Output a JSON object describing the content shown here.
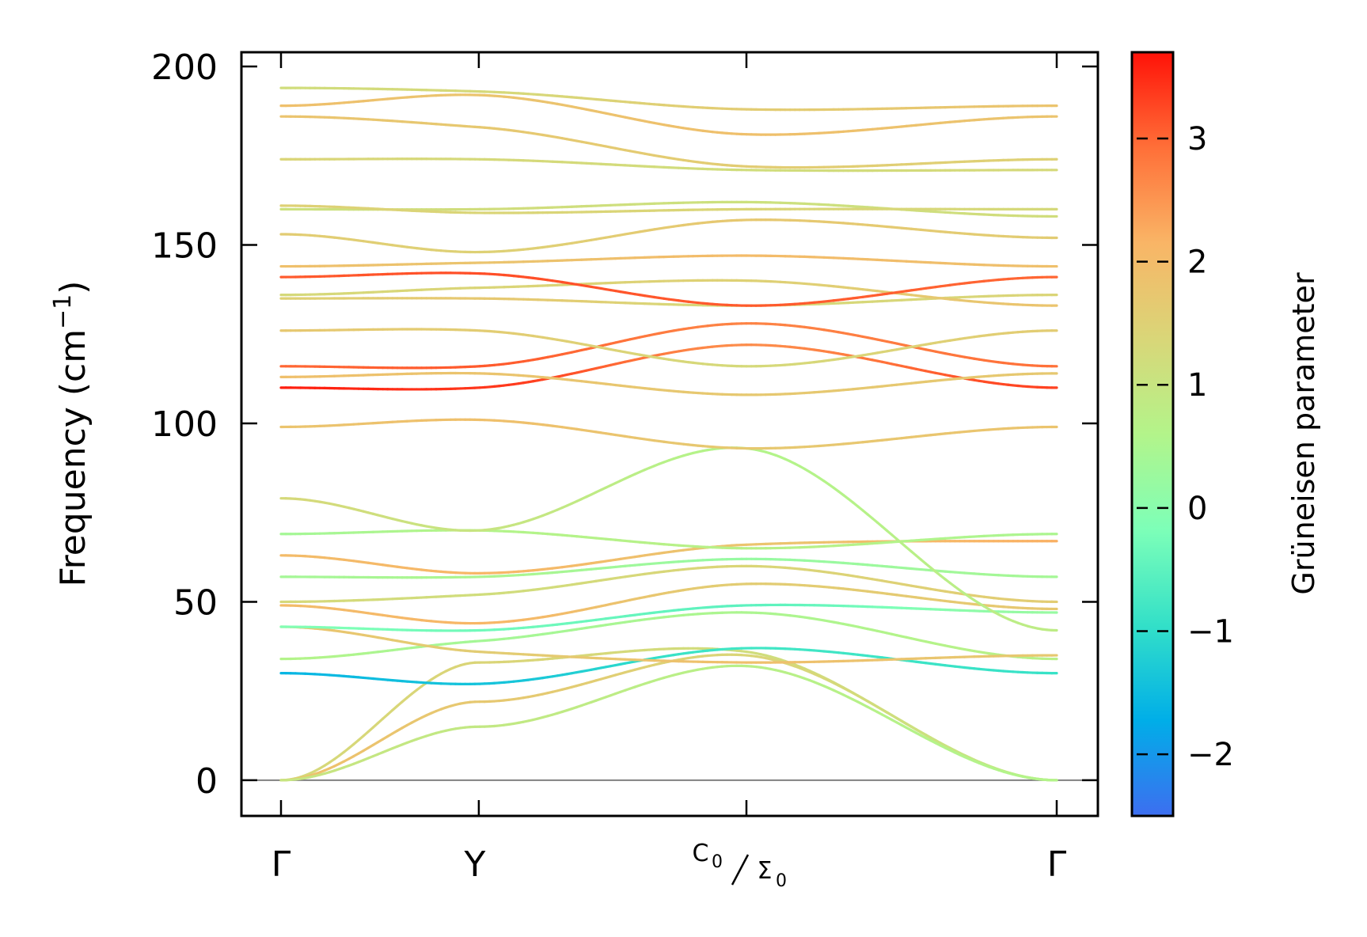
{
  "chart_data": {
    "type": "line",
    "title": "",
    "xlabel": "",
    "ylabel": "Frequency (cm",
    "ylabel_superscript": "−1",
    "ylabel_suffix": ")",
    "ylim": [
      -10,
      204
    ],
    "yticks": [
      0,
      50,
      100,
      150,
      200
    ],
    "ytick_labels": [
      "0",
      "50",
      "100",
      "150",
      "200"
    ],
    "path_points": [
      0.0,
      0.255,
      0.6,
      1.0
    ],
    "path_labels": [
      {
        "main": "Γ"
      },
      {
        "main": "Y"
      },
      {
        "main": "C",
        "sub": "0",
        "slash_main": "Σ",
        "slash_sub": "0"
      },
      {
        "main": "Γ"
      }
    ],
    "colorbar": {
      "label": "Grüneisen parameter",
      "range": [
        -2.5,
        3.7
      ],
      "ticks": [
        -2,
        -1,
        0,
        1,
        2,
        3
      ],
      "tick_labels": [
        "−2",
        "−1",
        "0",
        "1",
        "2",
        "3"
      ],
      "colormap": [
        "#3d6ef0",
        "#00aee8",
        "#33e0c8",
        "#7dffb8",
        "#b3f48a",
        "#d9d678",
        "#f9b566",
        "#ff6f38",
        "#ff1208"
      ]
    },
    "zero_line_color": "#808080",
    "series": [
      {
        "name": "band-1",
        "x": [
          0,
          0.255,
          0.6,
          1.0
        ],
        "y": [
          0,
          33,
          36,
          0
        ],
        "g": [
          1.3,
          1.4,
          1.2,
          1.0
        ]
      },
      {
        "name": "band-2",
        "x": [
          0,
          0.255,
          0.6,
          1.0
        ],
        "y": [
          0,
          22,
          35,
          0
        ],
        "g": [
          1.9,
          1.7,
          1.4,
          0.9
        ]
      },
      {
        "name": "band-3",
        "x": [
          0,
          0.255,
          0.6,
          1.0
        ],
        "y": [
          0,
          15,
          32,
          0
        ],
        "g": [
          1.0,
          0.9,
          0.7,
          0.6
        ]
      },
      {
        "name": "band-4",
        "x": [
          0,
          0.255,
          0.6,
          1.0
        ],
        "y": [
          30,
          27,
          37,
          30
        ],
        "g": [
          -1.6,
          -1.4,
          -0.8,
          -0.9
        ]
      },
      {
        "name": "band-5",
        "x": [
          0,
          0.255,
          0.6,
          1.0
        ],
        "y": [
          34,
          39,
          47,
          34
        ],
        "g": [
          0.6,
          0.4,
          0.5,
          0.7
        ]
      },
      {
        "name": "band-6",
        "x": [
          0,
          0.255,
          0.6,
          1.0
        ],
        "y": [
          43,
          36,
          33,
          35
        ],
        "g": [
          1.8,
          1.6,
          1.9,
          1.7
        ]
      },
      {
        "name": "band-7",
        "x": [
          0,
          0.255,
          0.6,
          1.0
        ],
        "y": [
          43,
          42,
          49,
          47
        ],
        "g": [
          -0.1,
          -0.3,
          -0.5,
          0.2
        ]
      },
      {
        "name": "band-8",
        "x": [
          0,
          0.255,
          0.6,
          1.0
        ],
        "y": [
          49,
          44,
          55,
          48
        ],
        "g": [
          2.0,
          2.1,
          1.6,
          1.7
        ]
      },
      {
        "name": "band-9",
        "x": [
          0,
          0.255,
          0.6,
          1.0
        ],
        "y": [
          50,
          52,
          60,
          50
        ],
        "g": [
          1.3,
          1.2,
          1.4,
          1.6
        ]
      },
      {
        "name": "band-10",
        "x": [
          0,
          0.255,
          0.6,
          1.0
        ],
        "y": [
          57,
          57,
          62,
          57
        ],
        "g": [
          0.4,
          0.5,
          0.2,
          0.4
        ]
      },
      {
        "name": "band-11",
        "x": [
          0,
          0.255,
          0.6,
          1.0
        ],
        "y": [
          63,
          58,
          66,
          67
        ],
        "g": [
          2.0,
          2.1,
          1.8,
          2.2
        ]
      },
      {
        "name": "band-12",
        "x": [
          0,
          0.255,
          0.6,
          1.0
        ],
        "y": [
          69,
          70,
          65,
          69
        ],
        "g": [
          0.4,
          0.6,
          0.7,
          0.5
        ]
      },
      {
        "name": "band-13",
        "x": [
          0,
          0.255,
          0.6,
          1.0
        ],
        "y": [
          79,
          70,
          93,
          42
        ],
        "g": [
          1.3,
          1.0,
          0.6,
          0.8
        ]
      },
      {
        "name": "band-14",
        "x": [
          0,
          0.255,
          0.6,
          1.0
        ],
        "y": [
          99,
          101,
          93,
          99
        ],
        "g": [
          1.8,
          1.9,
          1.7,
          1.8
        ]
      },
      {
        "name": "band-15",
        "x": [
          0,
          0.255,
          0.6,
          1.0
        ],
        "y": [
          110,
          110,
          122,
          110
        ],
        "g": [
          3.6,
          3.4,
          2.6,
          3.3
        ]
      },
      {
        "name": "band-16",
        "x": [
          0,
          0.255,
          0.6,
          1.0
        ],
        "y": [
          113,
          114,
          108,
          114
        ],
        "g": [
          1.9,
          1.8,
          1.7,
          1.7
        ]
      },
      {
        "name": "band-17",
        "x": [
          0,
          0.255,
          0.6,
          1.0
        ],
        "y": [
          116,
          116,
          128,
          116
        ],
        "g": [
          3.0,
          3.1,
          2.7,
          2.9
        ]
      },
      {
        "name": "band-18",
        "x": [
          0,
          0.255,
          0.6,
          1.0
        ],
        "y": [
          126,
          126,
          116,
          126
        ],
        "g": [
          1.7,
          1.6,
          1.3,
          1.6
        ]
      },
      {
        "name": "band-19",
        "x": [
          0,
          0.255,
          0.6,
          1.0
        ],
        "y": [
          135,
          135,
          133,
          136
        ],
        "g": [
          1.5,
          1.7,
          1.3,
          1.4
        ]
      },
      {
        "name": "band-20",
        "x": [
          0,
          0.255,
          0.6,
          1.0
        ],
        "y": [
          136,
          138,
          140,
          133
        ],
        "g": [
          1.3,
          1.4,
          1.5,
          1.8
        ]
      },
      {
        "name": "band-21",
        "x": [
          0,
          0.255,
          0.6,
          1.0
        ],
        "y": [
          141,
          142,
          133,
          141
        ],
        "g": [
          3.1,
          3.2,
          3.1,
          3.0
        ]
      },
      {
        "name": "band-22",
        "x": [
          0,
          0.255,
          0.6,
          1.0
        ],
        "y": [
          144,
          145,
          147,
          144
        ],
        "g": [
          1.9,
          1.8,
          2.0,
          1.9
        ]
      },
      {
        "name": "band-23",
        "x": [
          0,
          0.255,
          0.6,
          1.0
        ],
        "y": [
          153,
          148,
          157,
          152
        ],
        "g": [
          1.6,
          1.5,
          1.7,
          1.6
        ]
      },
      {
        "name": "band-24",
        "x": [
          0,
          0.255,
          0.6,
          1.0
        ],
        "y": [
          160,
          160,
          162,
          158
        ],
        "g": [
          1.1,
          1.2,
          1.1,
          1.2
        ]
      },
      {
        "name": "band-25",
        "x": [
          0,
          0.255,
          0.6,
          1.0
        ],
        "y": [
          161,
          159,
          160,
          160
        ],
        "g": [
          1.5,
          1.4,
          1.4,
          1.3
        ]
      },
      {
        "name": "band-26",
        "x": [
          0,
          0.255,
          0.6,
          1.0
        ],
        "y": [
          174,
          174,
          171,
          171
        ],
        "g": [
          1.4,
          1.3,
          1.2,
          1.3
        ]
      },
      {
        "name": "band-27",
        "x": [
          0,
          0.255,
          0.6,
          1.0
        ],
        "y": [
          186,
          183,
          172,
          174
        ],
        "g": [
          1.8,
          1.7,
          1.6,
          1.5
        ]
      },
      {
        "name": "band-28",
        "x": [
          0,
          0.255,
          0.6,
          1.0
        ],
        "y": [
          189,
          192,
          181,
          186
        ],
        "g": [
          1.9,
          1.8,
          1.9,
          1.8
        ]
      },
      {
        "name": "band-29",
        "x": [
          0,
          0.255,
          0.6,
          1.0
        ],
        "y": [
          194,
          193,
          188,
          189
        ],
        "g": [
          1.2,
          1.3,
          1.6,
          1.8
        ]
      }
    ]
  }
}
